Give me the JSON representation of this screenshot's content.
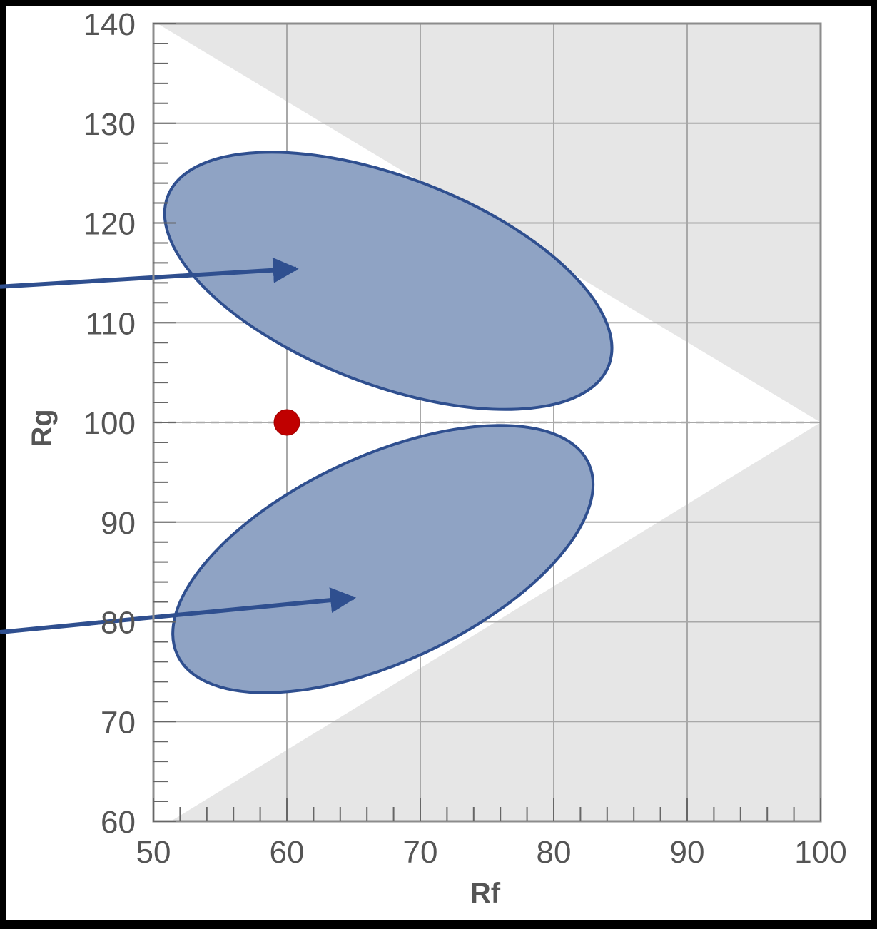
{
  "chart_data": {
    "type": "scatter",
    "title": "",
    "xlabel": "Rf",
    "ylabel": "Rg",
    "xlim": [
      50,
      100
    ],
    "ylim": [
      60,
      140
    ],
    "xticks": [
      50,
      60,
      70,
      80,
      90,
      100
    ],
    "yticks": [
      60,
      70,
      80,
      90,
      100,
      110,
      120,
      130,
      140
    ],
    "grid": true,
    "reference_line": {
      "y": 100,
      "style": "dashed"
    },
    "gamut_regions": [
      {
        "name": "outer",
        "color": "#c0c0c0",
        "upper_boundary": [
          [
            59.3,
            140
          ],
          [
            100,
            100
          ]
        ],
        "lower_boundary": [
          [
            60.7,
            60
          ],
          [
            100,
            100
          ]
        ]
      },
      {
        "name": "inner",
        "color": "#e6e6e6",
        "upper_boundary": [
          [
            50.3,
            140
          ],
          [
            100,
            100
          ]
        ],
        "lower_boundary": [
          [
            51.3,
            60
          ],
          [
            100,
            100
          ]
        ]
      }
    ],
    "points": [
      {
        "x": 60,
        "y": 100,
        "color": "#c00000"
      }
    ],
    "ellipses": [
      {
        "center": [
          67.6,
          114.2
        ],
        "semi_axes": [
          17.7,
          10.4
        ],
        "rotation_deg": 21,
        "color": "#8fa3c4"
      },
      {
        "center": [
          67.2,
          86.3
        ],
        "semi_axes": [
          17.0,
          10.3
        ],
        "rotation_deg": -25,
        "color": "#8fa3c4"
      }
    ],
    "arrows": [
      {
        "to": [
          60.7,
          115.4
        ]
      },
      {
        "to": [
          65.0,
          82.4
        ]
      }
    ]
  }
}
